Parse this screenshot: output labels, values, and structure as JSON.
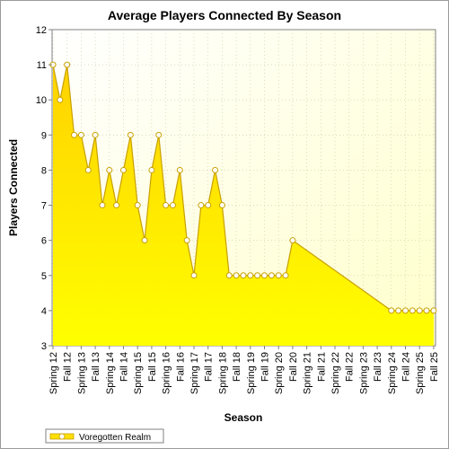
{
  "chart_data": {
    "type": "area",
    "title": "Average Players Connected By Season",
    "xlabel": "Season",
    "ylabel": "Players Connected",
    "ylim": [
      3,
      12
    ],
    "yticks": [
      3,
      4,
      5,
      6,
      7,
      8,
      9,
      10,
      11,
      12
    ],
    "grid": true,
    "legend_position": "bottom-left",
    "x_labels": [
      "Spring 12",
      "Fall 12",
      "Spring 13",
      "Fall 13",
      "Spring 14",
      "Fall 14",
      "Spring 15",
      "Fall 15",
      "Spring 16",
      "Fall 16",
      "Spring 17",
      "Fall 17",
      "Spring 18",
      "Fall 18",
      "Spring 19",
      "Fall 19",
      "Spring 20",
      "Fall 20",
      "Spring 21",
      "Fall 21",
      "Spring 22",
      "Fall 22",
      "Spring 23",
      "Fall 23",
      "Spring 24",
      "Fall 24",
      "Spring 25",
      "Fall 25"
    ],
    "series": [
      {
        "name": "Voregotten Realm",
        "color": "#ffe000",
        "marker_color": "#ffffff",
        "points": [
          [
            0,
            11
          ],
          [
            0.5,
            10
          ],
          [
            1,
            11
          ],
          [
            1.5,
            9
          ],
          [
            2,
            9
          ],
          [
            2.5,
            8
          ],
          [
            3,
            9
          ],
          [
            3.5,
            7
          ],
          [
            4,
            8
          ],
          [
            4.5,
            7
          ],
          [
            5,
            8
          ],
          [
            5.5,
            9
          ],
          [
            6,
            7
          ],
          [
            6.5,
            6
          ],
          [
            7,
            8
          ],
          [
            7.5,
            9
          ],
          [
            8,
            7
          ],
          [
            8.5,
            7
          ],
          [
            9,
            8
          ],
          [
            9.5,
            6
          ],
          [
            10,
            5
          ],
          [
            10.5,
            7
          ],
          [
            11,
            7
          ],
          [
            11.5,
            8
          ],
          [
            12,
            7
          ],
          [
            12.5,
            5
          ],
          [
            13,
            5
          ],
          [
            13.5,
            5
          ],
          [
            14,
            5
          ],
          [
            14.5,
            5
          ],
          [
            15,
            5
          ],
          [
            15.5,
            5
          ],
          [
            16,
            5
          ],
          [
            16.5,
            5
          ],
          [
            17,
            6
          ],
          [
            24,
            4
          ],
          [
            24.5,
            4
          ],
          [
            25,
            4
          ],
          [
            25.5,
            4
          ],
          [
            26,
            4
          ],
          [
            26.5,
            4
          ],
          [
            27,
            4
          ]
        ]
      }
    ]
  }
}
